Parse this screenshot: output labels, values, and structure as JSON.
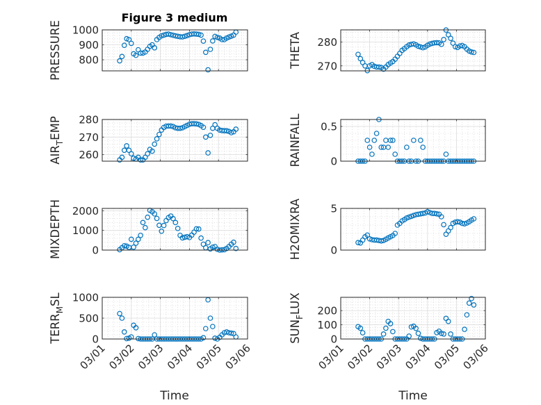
{
  "chart_data": {
    "type": "scatter",
    "title": "Figure 3 medium",
    "xlabel": "Time",
    "x_unit": "days since 03/01",
    "xlim": [
      0,
      5
    ],
    "xticks": [
      0,
      1,
      2,
      3,
      4,
      5
    ],
    "xtick_labels": [
      "03/01",
      "03/02",
      "03/03",
      "03/04",
      "03/05",
      "03/06"
    ],
    "grid": true,
    "minor_grid": true,
    "marker": "circle",
    "marker_color": "#0072BD",
    "x_days": [
      0.6,
      0.68,
      0.76,
      0.84,
      0.92,
      1.0,
      1.08,
      1.16,
      1.24,
      1.32,
      1.4,
      1.48,
      1.56,
      1.64,
      1.72,
      1.8,
      1.88,
      1.96,
      2.04,
      2.12,
      2.2,
      2.28,
      2.36,
      2.44,
      2.52,
      2.6,
      2.68,
      2.76,
      2.84,
      2.92,
      3.0,
      3.08,
      3.16,
      3.24,
      3.32,
      3.4,
      3.48,
      3.56,
      3.64,
      3.72,
      3.8,
      3.88,
      3.96,
      4.04,
      4.12,
      4.2,
      4.28,
      4.36,
      4.44,
      4.52,
      4.6
    ],
    "panels": [
      {
        "ylabel": "PRESSURE",
        "ylim": [
          726,
          1000
        ],
        "yticks": [
          800,
          900,
          1000
        ],
        "ytick_labels": [
          "800",
          "900",
          "1000"
        ],
        "values": [
          793,
          822,
          897,
          941,
          935,
          910,
          840,
          830,
          867,
          845,
          845,
          852,
          870,
          890,
          900,
          880,
          935,
          950,
          960,
          965,
          970,
          972,
          968,
          964,
          960,
          957,
          954,
          953,
          957,
          962,
          968,
          972,
          973,
          972,
          970,
          965,
          925,
          850,
          733,
          870,
          926,
          956,
          950,
          945,
          935,
          935,
          945,
          952,
          958,
          965,
          985
        ]
      },
      {
        "ylabel": "THETA",
        "ylim": [
          267.9,
          285.05
        ],
        "yticks": [
          270,
          280
        ],
        "ytick_labels": [
          "270",
          "280"
        ],
        "values": [
          274.8,
          273,
          271.4,
          270,
          268,
          270,
          270.5,
          269.8,
          269.5,
          269.5,
          269.3,
          268.6,
          269.5,
          270.5,
          271.2,
          271.8,
          272.8,
          274,
          275.2,
          276.5,
          277.2,
          278,
          278.7,
          279,
          279.2,
          278.8,
          278.2,
          277.9,
          277.6,
          277.9,
          278.6,
          279.1,
          279.4,
          279.6,
          279.7,
          279.6,
          279,
          281,
          285,
          283,
          281.5,
          279.5,
          278,
          277.7,
          278.3,
          278.5,
          278,
          277,
          276.2,
          275.8,
          275.6
        ]
      },
      {
        "ylabel": "AIR_TEMP",
        "ylim": [
          256.3,
          280
        ],
        "yticks": [
          260,
          270,
          280
        ],
        "ytick_labels": [
          "260",
          "270",
          "280"
        ],
        "values": [
          257,
          258.5,
          262.5,
          265,
          262.5,
          260.5,
          258,
          257.5,
          258.5,
          257,
          257,
          258.5,
          260.5,
          263,
          262,
          266,
          269,
          271.5,
          274,
          275.5,
          276.2,
          276.3,
          276.3,
          276,
          275.3,
          275,
          275,
          275.3,
          276,
          276.6,
          277.3,
          277.6,
          277.6,
          277.5,
          277.2,
          276.5,
          275.6,
          270,
          261,
          271,
          275,
          277,
          275,
          274,
          273.7,
          273.6,
          273.6,
          273.2,
          272.5,
          273,
          274.5
        ]
      },
      {
        "ylabel": "RAINFALL",
        "ylim": [
          0,
          0.6
        ],
        "yticks": [
          0,
          0.5
        ],
        "ytick_labels": [
          "0",
          "0.5"
        ],
        "values": [
          0,
          0,
          0,
          0,
          0.3,
          0.2,
          0.1,
          0.3,
          0.4,
          0.6,
          0.2,
          0.2,
          0.3,
          0.2,
          0.3,
          0.3,
          0.1,
          0,
          0,
          0,
          0,
          0.2,
          0,
          0,
          0.3,
          0,
          0,
          0.3,
          0.2,
          0,
          0,
          0,
          0,
          0,
          0,
          0,
          0,
          0,
          0.1,
          0,
          0,
          0,
          0,
          0,
          0,
          0,
          0,
          0,
          0,
          0,
          0
        ]
      },
      {
        "ylabel": "MIXDEPTH",
        "ylim": [
          0,
          2118
        ],
        "yticks": [
          0,
          1000,
          2000
        ],
        "ytick_labels": [
          "0",
          "1000",
          "2000"
        ],
        "values": [
          20,
          120,
          220,
          200,
          140,
          550,
          150,
          350,
          550,
          750,
          1400,
          1140,
          1670,
          2020,
          1950,
          1840,
          1610,
          1260,
          960,
          1250,
          1500,
          1650,
          1730,
          1600,
          1400,
          1100,
          750,
          620,
          650,
          680,
          640,
          760,
          910,
          1080,
          1070,
          610,
          300,
          120,
          380,
          60,
          150,
          180,
          40,
          0,
          10,
          20,
          80,
          180,
          300,
          400,
          80
        ]
      },
      {
        "ylabel": "H2OMIXRA",
        "ylim": [
          0,
          5
        ],
        "yticks": [
          0,
          5
        ],
        "ytick_labels": [
          "0",
          "5"
        ],
        "values": [
          0.9,
          0.85,
          1.2,
          1.6,
          1.8,
          1.35,
          1.25,
          1.2,
          1.2,
          1.15,
          1.1,
          1.15,
          1.3,
          1.45,
          1.6,
          1.75,
          2.0,
          3.0,
          3.2,
          3.5,
          3.65,
          3.85,
          3.95,
          4.05,
          4.15,
          4.25,
          4.3,
          4.35,
          4.4,
          4.45,
          4.6,
          4.5,
          4.4,
          4.4,
          4.35,
          4.3,
          4.0,
          3.05,
          1.9,
          2.3,
          2.7,
          3.2,
          3.35,
          3.4,
          3.35,
          3.2,
          3.15,
          3.25,
          3.4,
          3.6,
          3.75
        ]
      },
      {
        "ylabel": "TERR_MSL",
        "ylim": [
          0,
          1000
        ],
        "yticks": [
          0,
          500,
          1000
        ],
        "ytick_labels": [
          "0",
          "500",
          "1000"
        ],
        "values": [
          610,
          500,
          170,
          10,
          20,
          50,
          330,
          270,
          10,
          0,
          0,
          0,
          0,
          0,
          0,
          100,
          0,
          0,
          0,
          0,
          0,
          0,
          0,
          0,
          0,
          0,
          0,
          0,
          0,
          0,
          0,
          0,
          0,
          0,
          0,
          0,
          30,
          250,
          940,
          500,
          300,
          20,
          0,
          40,
          100,
          150,
          170,
          150,
          140,
          130,
          50
        ]
      },
      {
        "ylabel": "SUN_FLUX",
        "ylim": [
          0,
          293.5
        ],
        "yticks": [
          0,
          100,
          200
        ],
        "ytick_labels": [
          "0",
          "100",
          "200"
        ],
        "values": [
          87,
          76,
          44,
          0,
          0,
          0,
          0,
          0,
          0,
          0,
          0,
          35,
          76,
          124,
          108,
          52,
          0,
          0,
          0,
          0,
          0,
          0,
          20,
          85,
          90,
          75,
          40,
          5,
          0,
          0,
          0,
          0,
          0,
          0,
          45,
          55,
          40,
          35,
          145,
          124,
          35,
          0,
          0,
          0,
          0,
          0,
          68,
          170,
          253,
          285,
          240
        ]
      }
    ]
  }
}
